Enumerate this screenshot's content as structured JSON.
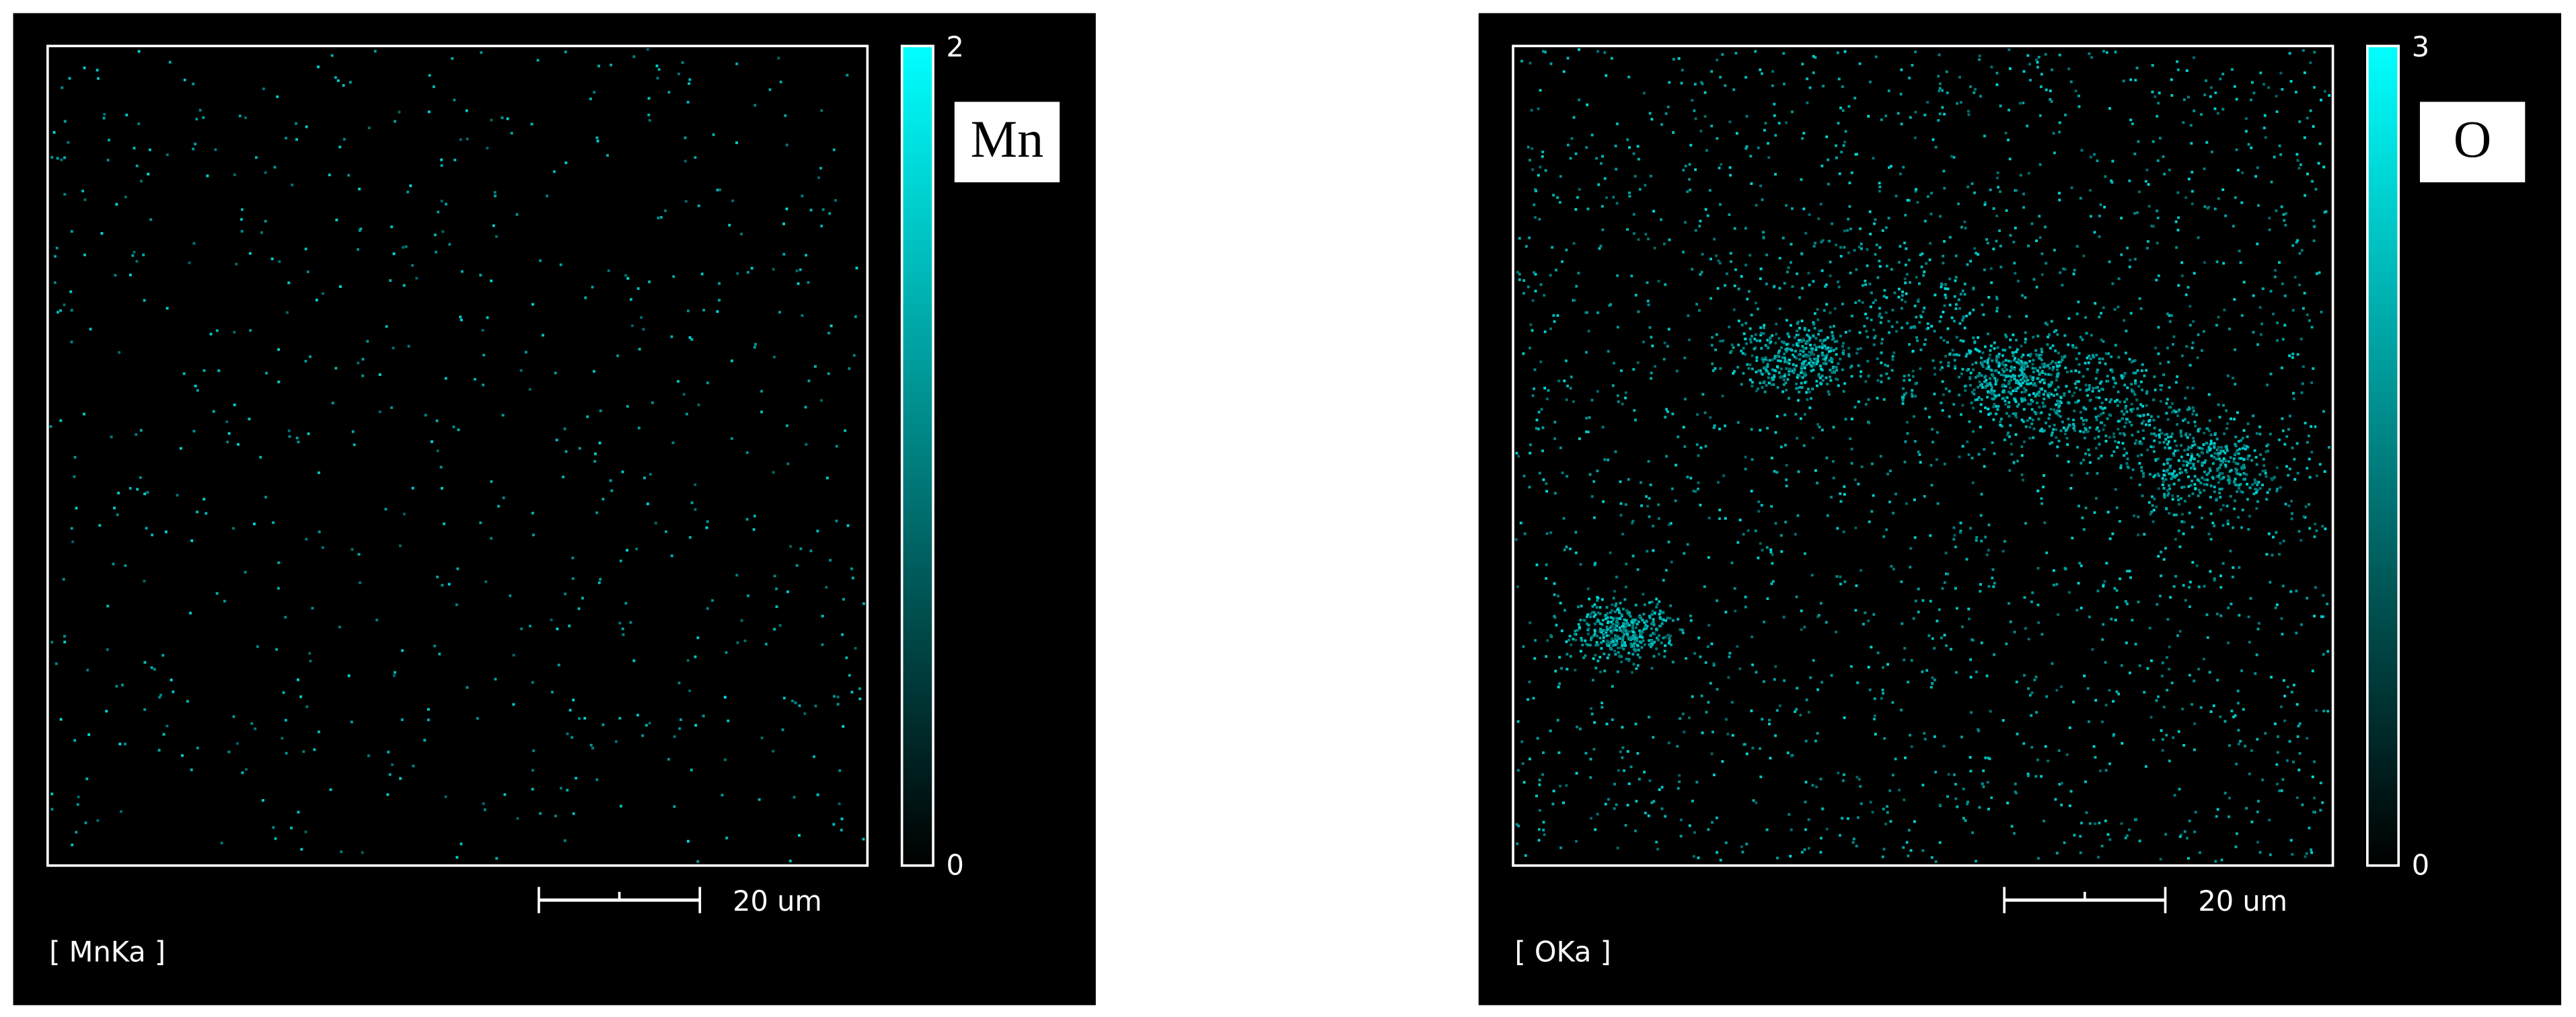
{
  "panels": [
    {
      "element": "Mn",
      "colorbar_max": 2,
      "colorbar_min": 0,
      "scale_label": "20 um",
      "caption": "[ MnKa ]"
    },
    {
      "element": "O",
      "colorbar_max": 3,
      "colorbar_min": 0,
      "scale_label": "20 um",
      "caption": "[ OKa ]"
    }
  ]
}
